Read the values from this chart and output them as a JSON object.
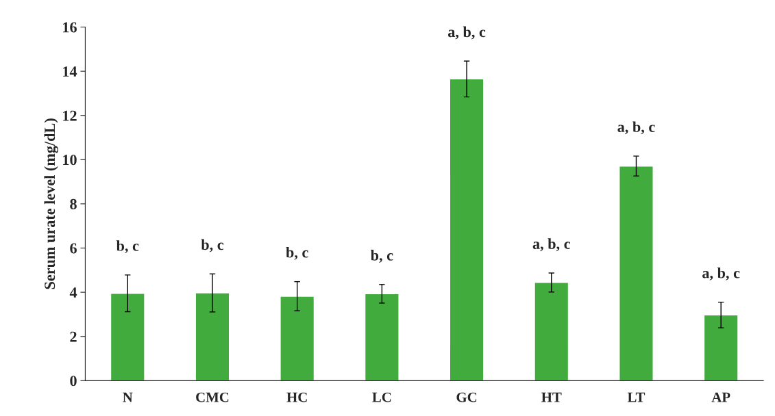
{
  "chart_data": {
    "type": "bar",
    "ylabel": "Serum urate level (mg/dL)",
    "categories": [
      "N",
      "CMC",
      "HC",
      "LC",
      "GC",
      "HT",
      "LT",
      "AP"
    ],
    "values": [
      3.95,
      3.97,
      3.82,
      3.93,
      13.65,
      4.44,
      9.71,
      2.97
    ],
    "errors": [
      0.83,
      0.86,
      0.66,
      0.42,
      0.81,
      0.43,
      0.45,
      0.58
    ],
    "color": "#41ab3d",
    "ylim": [
      0,
      16
    ],
    "yticks": [
      0,
      2,
      4,
      6,
      8,
      10,
      12,
      14,
      16
    ],
    "grid": false,
    "legend": false,
    "annotations": [
      "b, c",
      "b, c",
      "b, c",
      "b, c",
      "a, b, c",
      "a, b, c",
      "a, b, c",
      "a, b, c"
    ]
  }
}
